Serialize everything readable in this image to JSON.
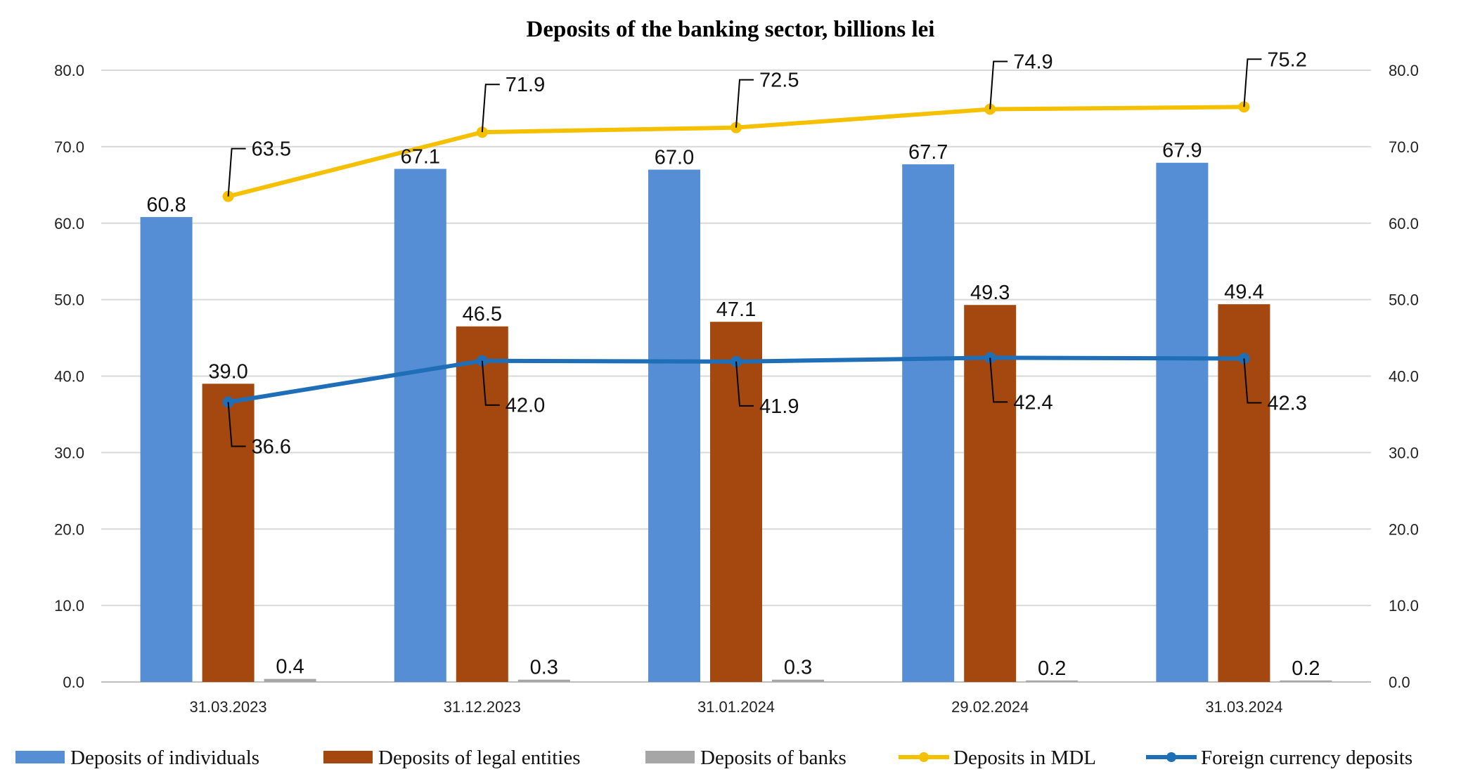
{
  "chart_data": {
    "type": "bar",
    "title": "Deposits of the banking sector, billions lei",
    "categories": [
      "31.03.2023",
      "31.12.2023",
      "31.01.2024",
      "29.02.2024",
      "31.03.2024"
    ],
    "ylim": [
      0,
      80
    ],
    "yticks": [
      "0.0",
      "10.0",
      "20.0",
      "30.0",
      "40.0",
      "50.0",
      "60.0",
      "70.0",
      "80.0"
    ],
    "grid": true,
    "legend_position": "bottom",
    "series": [
      {
        "name": "Deposits of individuals",
        "kind": "bar",
        "color": "#558ED5",
        "values": [
          60.8,
          67.1,
          67.0,
          67.7,
          67.9
        ],
        "labels": [
          "60.8",
          "67.1",
          "67.0",
          "67.7",
          "67.9"
        ]
      },
      {
        "name": "Deposits of legal entities",
        "kind": "bar",
        "color": "#A5480F",
        "values": [
          39.0,
          46.5,
          47.1,
          49.3,
          49.4
        ],
        "labels": [
          "39.0",
          "46.5",
          "47.1",
          "49.3",
          "49.4"
        ]
      },
      {
        "name": "Deposits of banks",
        "kind": "bar",
        "color": "#A6A6A6",
        "values": [
          0.4,
          0.3,
          0.3,
          0.2,
          0.2
        ],
        "labels": [
          "0.4",
          "0.3",
          "0.3",
          "0.2",
          "0.2"
        ]
      },
      {
        "name": "Deposits in MDL",
        "kind": "line",
        "color": "#F5C000",
        "values": [
          63.5,
          71.9,
          72.5,
          74.9,
          75.2
        ],
        "labels": [
          "63.5",
          "71.9",
          "72.5",
          "74.9",
          "75.2"
        ]
      },
      {
        "name": "Foreign currency deposits",
        "kind": "line",
        "color": "#1F6FB8",
        "values": [
          36.6,
          42.0,
          41.9,
          42.4,
          42.3
        ],
        "labels": [
          "36.6",
          "42.0",
          "41.9",
          "42.4",
          "42.3"
        ]
      }
    ]
  }
}
